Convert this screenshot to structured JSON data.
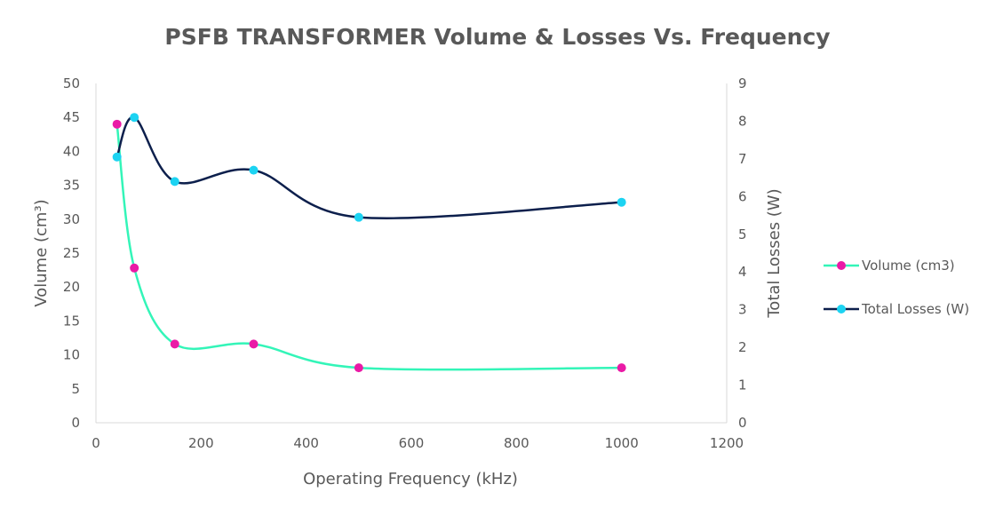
{
  "chart_data": {
    "type": "line",
    "title": "PSFB TRANSFORMER Volume & Losses Vs. Frequency",
    "xlabel": "Operating Frequency (kHz)",
    "ylabel": "Volume (cm³)",
    "y2label": "Total Losses (W)",
    "xlim": [
      0,
      1200
    ],
    "ylim": [
      0,
      50
    ],
    "y2lim": [
      0,
      9
    ],
    "x_ticks": [
      "0",
      "200",
      "400",
      "600",
      "800",
      "1000",
      "1200"
    ],
    "y_ticks": [
      "0",
      "5",
      "10",
      "15",
      "20",
      "25",
      "30",
      "35",
      "40",
      "45",
      "50"
    ],
    "y2_ticks": [
      "0",
      "1",
      "2",
      "3",
      "4",
      "5",
      "6",
      "7",
      "8",
      "9"
    ],
    "legend_position": "right",
    "grid": false,
    "series": [
      {
        "name": "Volume (cm3)",
        "axis": "left",
        "line_color": "#33f5b8",
        "marker_color": "#ea1aa6",
        "x": [
          40,
          73,
          150,
          300,
          500,
          1000
        ],
        "y": [
          44,
          22.8,
          11.6,
          11.6,
          8.1,
          8.1
        ]
      },
      {
        "name": "Total Losses (W)",
        "axis": "right",
        "line_color": "#0c1f4c",
        "marker_color": "#1cd3f2",
        "x": [
          40,
          73,
          150,
          300,
          500,
          1000
        ],
        "y": [
          7.05,
          8.1,
          6.4,
          6.7,
          5.45,
          5.85
        ]
      }
    ]
  }
}
